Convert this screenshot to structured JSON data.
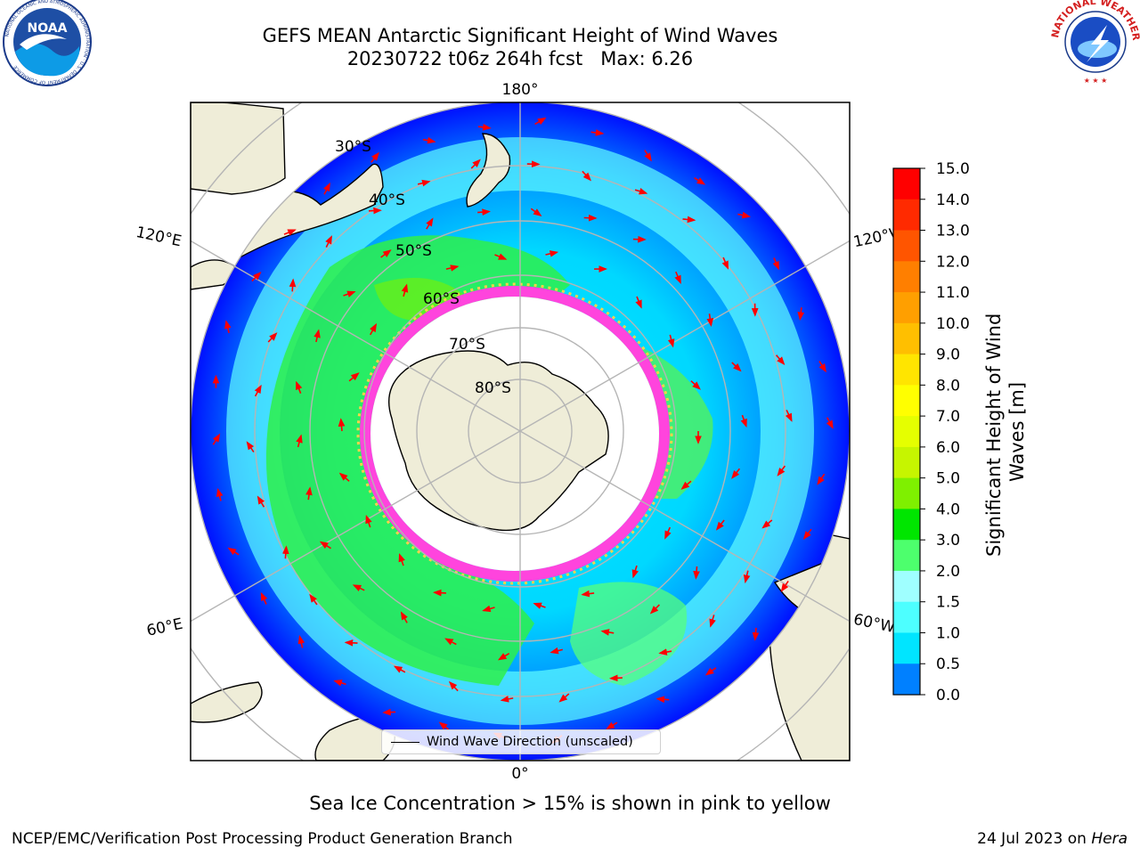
{
  "header": {
    "title_line1": "GEFS MEAN Antarctic Significant Height of Wind Waves",
    "title_line2": "20230722 t06z 264h fcst   Max: 6.26"
  },
  "logos": {
    "left": "NOAA",
    "left_ring": "NATIONAL OCEANIC AND ATMOSPHERIC ADMINISTRATION · U.S. DEPARTMENT OF COMMERCE",
    "right_ring": "NATIONAL WEATHER SERVICE"
  },
  "map": {
    "projection": "south polar stereographic",
    "longitude_labels": {
      "top": "180°",
      "bottom": "0°",
      "upper_left": "120°E",
      "lower_left": "60°E",
      "upper_right": "120°W",
      "lower_right": "60°W"
    },
    "latitude_labels": [
      "30°S",
      "40°S",
      "50°S",
      "60°S",
      "70°S",
      "80°S"
    ],
    "legend_label": "Wind Wave Direction (unscaled)"
  },
  "colorbar": {
    "label": "Significant Height of Wind Waves [m]",
    "ticks": [
      "15.0",
      "14.0",
      "13.0",
      "12.0",
      "11.0",
      "10.0",
      "9.0",
      "8.0",
      "7.0",
      "6.0",
      "5.0",
      "4.0",
      "3.0",
      "2.0",
      "1.5",
      "1.0",
      "0.5",
      "0.0"
    ],
    "colors_top_to_bottom": [
      "#ff0000",
      "#ff2a00",
      "#ff5500",
      "#ff7f00",
      "#ff9f00",
      "#ffbf00",
      "#ffe500",
      "#ffff00",
      "#e5ff00",
      "#c6f500",
      "#7ff000",
      "#00e600",
      "#4dff6d",
      "#9fffff",
      "#4dffff",
      "#00e5ff",
      "#0080ff",
      "#0000ff"
    ]
  },
  "footer": {
    "note": "Sea Ice Concentration > 15% is shown in pink to yellow",
    "credit_left": "NCEP/EMC/Verification Post Processing Product Generation Branch",
    "credit_right_date": "24 Jul 2023 on ",
    "credit_right_host": "Hera"
  }
}
